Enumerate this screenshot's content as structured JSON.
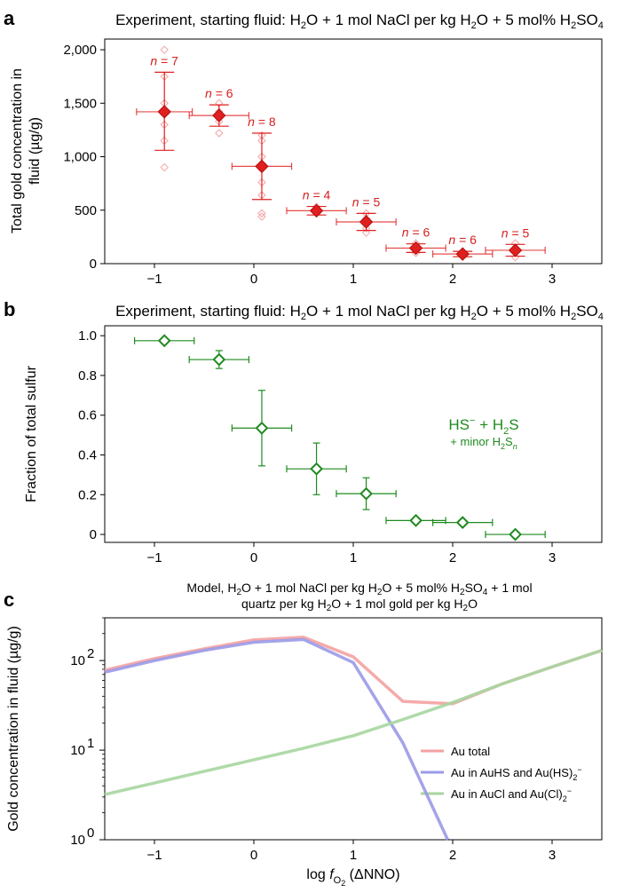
{
  "panels": [
    {
      "label": "a",
      "title": "Experiment, starting fluid: H2O + 1 mol NaCl per kg H2O + 5 mol% H2SO4"
    },
    {
      "label": "b",
      "title": "Experiment, starting fluid: H2O + 1 mol NaCl per kg H2O + 5 mol% H2SO4"
    },
    {
      "label": "c",
      "title_line1": "Model, H2O + 1 mol NaCl per kg H2O + 5 mol% H2SO4 + 1 mol",
      "title_line2": "quartz per kg H2O + 1 mol gold per kg H2O"
    }
  ],
  "colors": {
    "gold": "#e01f1f",
    "gold_light": "#f2a3a3",
    "sulfur": "#1f8a1f",
    "au_total": "#f4a1a1",
    "au_hs": "#9a9ae8",
    "au_cl": "#a7d6a0"
  },
  "chart_data": [
    {
      "type": "scatter",
      "panel": "a",
      "title": "Experiment, starting fluid: H2O + 1 mol NaCl per kg H2O + 5 mol% H2SO4",
      "xlabel": "",
      "ylabel": "Total gold concentration in fluid (µg/g)",
      "xlim": [
        -1.5,
        3.5
      ],
      "ylim": [
        0,
        2100
      ],
      "xticks": [
        -1,
        0,
        1,
        2,
        3
      ],
      "xtick_labels": [
        "−1",
        "0",
        "1",
        "2",
        "3"
      ],
      "yticks": [
        0,
        500,
        1000,
        1500,
        2000
      ],
      "ytick_labels": [
        "0",
        "500",
        "1,000",
        "1,500",
        "2,000"
      ],
      "series": [
        {
          "name": "mean",
          "points": [
            {
              "x": -0.9,
              "y": 1420,
              "xerr": 0.28,
              "yerr_low": 360,
              "yerr_high": 370,
              "n_label": "n = 7"
            },
            {
              "x": -0.35,
              "y": 1385,
              "xerr": 0.3,
              "yerr_low": 100,
              "yerr_high": 100,
              "n_label": "n = 6"
            },
            {
              "x": 0.08,
              "y": 910,
              "xerr": 0.3,
              "yerr_low": 310,
              "yerr_high": 310,
              "n_label": "n = 8"
            },
            {
              "x": 0.63,
              "y": 495,
              "xerr": 0.3,
              "yerr_low": 40,
              "yerr_high": 40,
              "n_label": "n = 4"
            },
            {
              "x": 1.13,
              "y": 390,
              "xerr": 0.3,
              "yerr_low": 80,
              "yerr_high": 80,
              "n_label": "n = 5"
            },
            {
              "x": 1.63,
              "y": 145,
              "xerr": 0.3,
              "yerr_low": 40,
              "yerr_high": 40,
              "n_label": "n = 6"
            },
            {
              "x": 2.1,
              "y": 90,
              "xerr": 0.3,
              "yerr_low": 25,
              "yerr_high": 25,
              "n_label": "n = 6"
            },
            {
              "x": 2.63,
              "y": 125,
              "xerr": 0.3,
              "yerr_low": 55,
              "yerr_high": 55,
              "n_label": "n = 5"
            }
          ]
        },
        {
          "name": "individual",
          "points": [
            {
              "x": -0.9,
              "y": 2000
            },
            {
              "x": -0.9,
              "y": 1750
            },
            {
              "x": -0.9,
              "y": 1500
            },
            {
              "x": -0.9,
              "y": 1300
            },
            {
              "x": -0.9,
              "y": 1150
            },
            {
              "x": -0.9,
              "y": 900
            },
            {
              "x": -0.35,
              "y": 1500
            },
            {
              "x": -0.35,
              "y": 1420
            },
            {
              "x": -0.35,
              "y": 1330
            },
            {
              "x": -0.35,
              "y": 1220
            },
            {
              "x": 0.08,
              "y": 1200
            },
            {
              "x": 0.08,
              "y": 1150
            },
            {
              "x": 0.08,
              "y": 1000
            },
            {
              "x": 0.08,
              "y": 760
            },
            {
              "x": 0.08,
              "y": 640
            },
            {
              "x": 0.08,
              "y": 470
            },
            {
              "x": 0.08,
              "y": 440
            },
            {
              "x": 0.63,
              "y": 530
            },
            {
              "x": 0.63,
              "y": 470
            },
            {
              "x": 1.13,
              "y": 470
            },
            {
              "x": 1.13,
              "y": 420
            },
            {
              "x": 1.13,
              "y": 330
            },
            {
              "x": 1.13,
              "y": 290
            },
            {
              "x": 1.63,
              "y": 190
            },
            {
              "x": 1.63,
              "y": 160
            },
            {
              "x": 1.63,
              "y": 120
            },
            {
              "x": 1.63,
              "y": 100
            },
            {
              "x": 2.1,
              "y": 110
            },
            {
              "x": 2.1,
              "y": 70
            },
            {
              "x": 2.63,
              "y": 190
            },
            {
              "x": 2.63,
              "y": 120
            },
            {
              "x": 2.63,
              "y": 60
            }
          ]
        }
      ]
    },
    {
      "type": "scatter",
      "panel": "b",
      "title": "Experiment, starting fluid: H2O + 1 mol NaCl per kg H2O + 5 mol% H2SO4",
      "xlabel": "",
      "ylabel": "Fraction of total sulfur",
      "xlim": [
        -1.5,
        3.5
      ],
      "ylim": [
        -0.04,
        1.05
      ],
      "xticks": [
        -1,
        0,
        1,
        2,
        3
      ],
      "xtick_labels": [
        "−1",
        "0",
        "1",
        "2",
        "3"
      ],
      "yticks": [
        0,
        0.2,
        0.4,
        0.6,
        0.8,
        1.0
      ],
      "ytick_labels": [
        "0",
        "0.2",
        "0.4",
        "0.6",
        "0.8",
        "1.0"
      ],
      "annotation_main": "HS⁻ + H₂S",
      "annotation_sub": "+ minor H₂Sₙ",
      "series": [
        {
          "name": "HS- + H2S",
          "points": [
            {
              "x": -0.9,
              "y": 0.975,
              "xerr": 0.3,
              "yerr": 0.0
            },
            {
              "x": -0.35,
              "y": 0.88,
              "xerr": 0.3,
              "yerr": 0.045
            },
            {
              "x": 0.08,
              "y": 0.535,
              "xerr": 0.3,
              "yerr": 0.19
            },
            {
              "x": 0.63,
              "y": 0.33,
              "xerr": 0.3,
              "yerr": 0.13
            },
            {
              "x": 1.13,
              "y": 0.205,
              "xerr": 0.3,
              "yerr": 0.08
            },
            {
              "x": 1.63,
              "y": 0.07,
              "xerr": 0.3,
              "yerr": 0.0
            },
            {
              "x": 2.1,
              "y": 0.06,
              "xerr": 0.3,
              "yerr": 0.0
            },
            {
              "x": 2.63,
              "y": 0.0,
              "xerr": 0.3,
              "yerr": 0.0
            }
          ]
        }
      ]
    },
    {
      "type": "line",
      "panel": "c",
      "title": "Model, H2O + 1 mol NaCl per kg H2O + 5 mol% H2SO4 + 1 mol quartz per kg H2O + 1 mol gold per kg H2O",
      "xlabel": "log fO2 (ΔNNO)",
      "ylabel": "Gold concentration in fluid (µg/g)",
      "yscale": "log",
      "xlim": [
        -1.5,
        3.5
      ],
      "ylim": [
        1,
        300
      ],
      "xticks": [
        -1,
        0,
        1,
        2,
        3
      ],
      "xtick_labels": [
        "−1",
        "0",
        "1",
        "2",
        "3"
      ],
      "yticks": [
        1,
        10,
        100
      ],
      "legend": [
        "Au total",
        "Au in AuHS and Au(HS)2⁻",
        "Au in AuCl and Au(Cl)2⁻"
      ],
      "series": [
        {
          "name": "Au total",
          "x": [
            -1.5,
            -1,
            -0.5,
            0,
            0.5,
            1,
            1.5,
            2,
            2.5,
            3,
            3.5
          ],
          "y": [
            78,
            105,
            135,
            170,
            182,
            110,
            35,
            33,
            55,
            85,
            130
          ]
        },
        {
          "name": "Au in AuHS and Au(HS)2-",
          "x": [
            -1.5,
            -1,
            -0.5,
            0,
            0.5,
            1,
            1.5,
            1.95
          ],
          "y": [
            74,
            100,
            130,
            160,
            172,
            95,
            12,
            1
          ]
        },
        {
          "name": "Au in AuCl and Au(Cl)2-",
          "x": [
            -1.5,
            -1,
            -0.5,
            0,
            0.5,
            1,
            1.5,
            2,
            2.5,
            3,
            3.5
          ],
          "y": [
            3.2,
            4.3,
            5.8,
            7.8,
            10.5,
            14.5,
            22,
            34,
            55,
            85,
            130
          ]
        }
      ]
    }
  ]
}
